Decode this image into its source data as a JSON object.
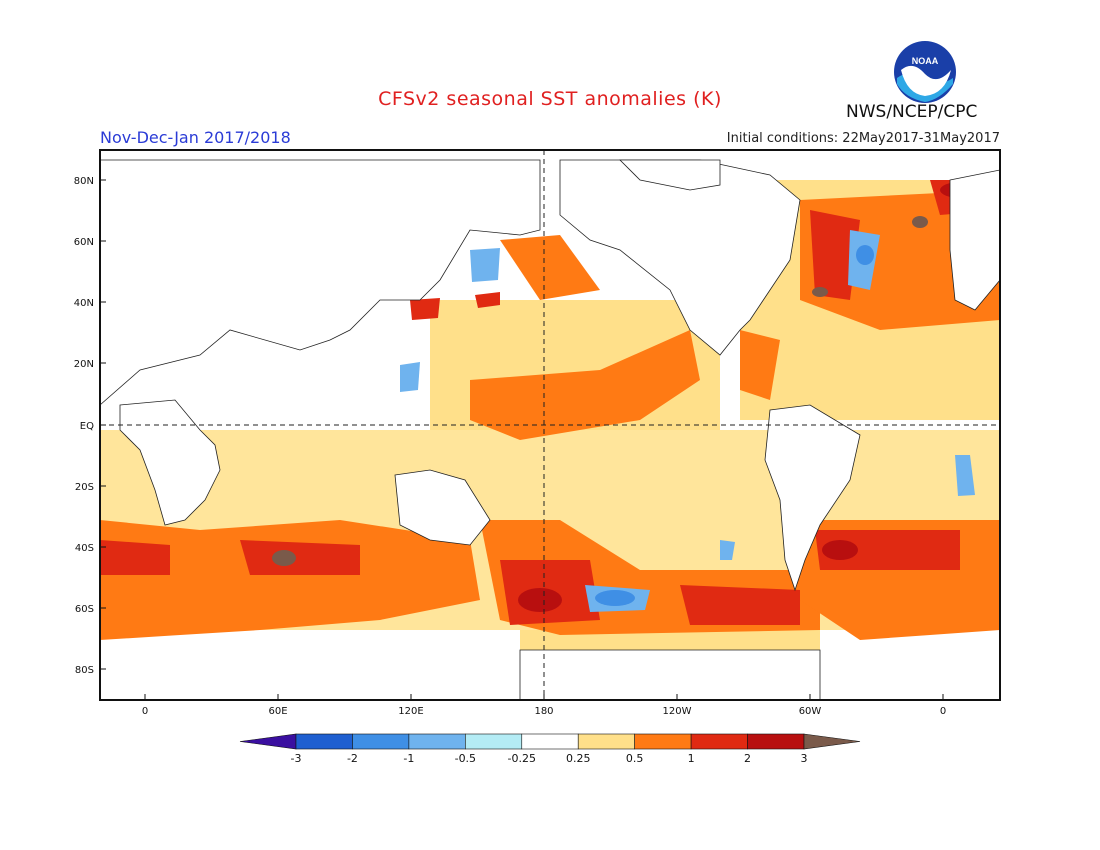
{
  "header": {
    "title": "CFSv2 seasonal SST anomalies (K)",
    "period": "Nov-Dec-Jan 2017/2018",
    "initial_conditions": "Initial conditions: 22May2017-31May2017",
    "agency": "NWS/NCEP/CPC",
    "logo_text": "NOAA"
  },
  "map": {
    "projection": "cylindrical equidistant",
    "lat_labels": [
      "80N",
      "60N",
      "40N",
      "20N",
      "EQ",
      "20S",
      "40S",
      "60S",
      "80S"
    ],
    "lon_labels": [
      "0",
      "60E",
      "120E",
      "180",
      "120W",
      "60W",
      "0"
    ],
    "dashed_reference_lines": [
      "EQ",
      "180"
    ]
  },
  "colorbar": {
    "ticks": [
      "-3",
      "-2",
      "-1",
      "-0.5",
      "-0.25",
      "0.25",
      "0.5",
      "1",
      "2",
      "3"
    ],
    "colors": [
      "#3a0fa0",
      "#1f5fd0",
      "#3f8fe5",
      "#6fb3ee",
      "#b4ecf5",
      "#ffffff",
      "#ffe08a",
      "#ff7a14",
      "#e02a12",
      "#b80f0f",
      "#7a5a4a"
    ]
  }
}
